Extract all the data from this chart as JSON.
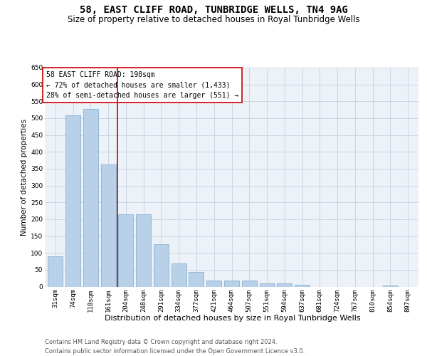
{
  "title": "58, EAST CLIFF ROAD, TUNBRIDGE WELLS, TN4 9AG",
  "subtitle": "Size of property relative to detached houses in Royal Tunbridge Wells",
  "xlabel": "Distribution of detached houses by size in Royal Tunbridge Wells",
  "ylabel": "Number of detached properties",
  "footer_line1": "Contains HM Land Registry data © Crown copyright and database right 2024.",
  "footer_line2": "Contains public sector information licensed under the Open Government Licence v3.0.",
  "annotation_line1": "58 EAST CLIFF ROAD: 198sqm",
  "annotation_line2": "← 72% of detached houses are smaller (1,433)",
  "annotation_line3": "28% of semi-detached houses are larger (551) →",
  "categories": [
    "31sqm",
    "74sqm",
    "118sqm",
    "161sqm",
    "204sqm",
    "248sqm",
    "291sqm",
    "334sqm",
    "377sqm",
    "421sqm",
    "464sqm",
    "507sqm",
    "551sqm",
    "594sqm",
    "637sqm",
    "681sqm",
    "724sqm",
    "767sqm",
    "810sqm",
    "854sqm",
    "897sqm"
  ],
  "values": [
    90,
    508,
    528,
    363,
    215,
    215,
    125,
    68,
    43,
    18,
    18,
    19,
    9,
    9,
    5,
    0,
    0,
    0,
    0,
    3,
    0
  ],
  "bar_color": "#b8d0e8",
  "bar_edge_color": "#7aa8cc",
  "vline_color": "#cc0000",
  "background_color": "#edf2f9",
  "grid_color": "#c5d0e0",
  "ylim": [
    0,
    650
  ],
  "yticks": [
    0,
    50,
    100,
    150,
    200,
    250,
    300,
    350,
    400,
    450,
    500,
    550,
    600,
    650
  ],
  "title_fontsize": 10,
  "subtitle_fontsize": 8.5,
  "xlabel_fontsize": 8,
  "ylabel_fontsize": 7.5,
  "tick_fontsize": 6.5,
  "annotation_fontsize": 7,
  "footer_fontsize": 6
}
